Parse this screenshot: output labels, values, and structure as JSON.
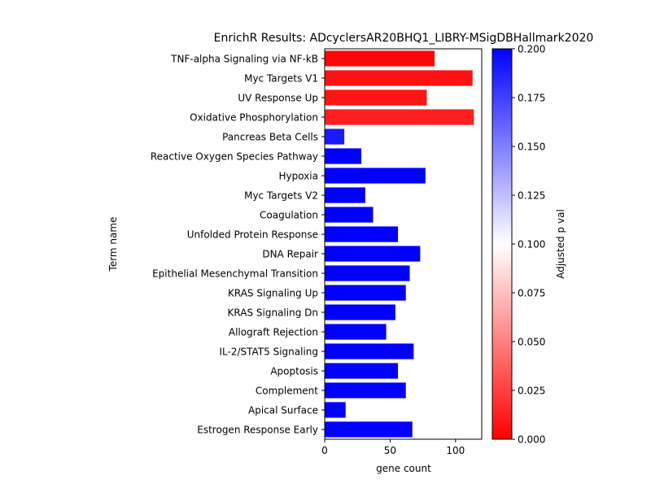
{
  "chart_data": {
    "type": "bar",
    "orientation": "horizontal",
    "title": "EnrichR Results: ADcyclersAR20BHQ1_LIBRY-MSigDBHallmark2020",
    "xlabel": "gene count",
    "ylabel": "Term name",
    "xlim": [
      0,
      120
    ],
    "xticks": [
      0,
      50,
      100
    ],
    "categories": [
      "TNF-alpha Signaling via NF-kB",
      "Myc Targets V1",
      "UV Response Up",
      "Oxidative Phosphorylation",
      "Pancreas Beta Cells",
      "Reactive Oxygen Species Pathway",
      "Hypoxia",
      "Myc Targets V2",
      "Coagulation",
      "Unfolded Protein Response",
      "DNA Repair",
      "Epithelial Mesenchymal Transition",
      "KRAS Signaling Up",
      "KRAS Signaling Dn",
      "Allograft Rejection",
      "IL-2/STAT5 Signaling",
      "Apoptosis",
      "Complement",
      "Apical Surface",
      "Estrogen Response Early"
    ],
    "values": [
      84,
      113,
      78,
      114,
      15,
      28,
      77,
      31,
      37,
      56,
      73,
      65,
      62,
      54,
      47,
      68,
      56,
      62,
      16,
      67
    ],
    "adjusted_p_values": [
      0.002,
      0.007,
      0.008,
      0.012,
      0.19,
      0.2,
      0.2,
      0.2,
      0.2,
      0.2,
      0.2,
      0.2,
      0.2,
      0.2,
      0.2,
      0.2,
      0.2,
      0.2,
      0.2,
      0.2
    ],
    "colorbar": {
      "label": "Adjusted p val",
      "range": [
        0.0,
        0.2
      ],
      "ticks": [
        "0.000",
        "0.025",
        "0.050",
        "0.075",
        "0.100",
        "0.125",
        "0.150",
        "0.175",
        "0.200"
      ],
      "colors": [
        "#ff0000",
        "#ffffff",
        "#0000ff"
      ]
    },
    "grid": false,
    "legend": "none"
  }
}
